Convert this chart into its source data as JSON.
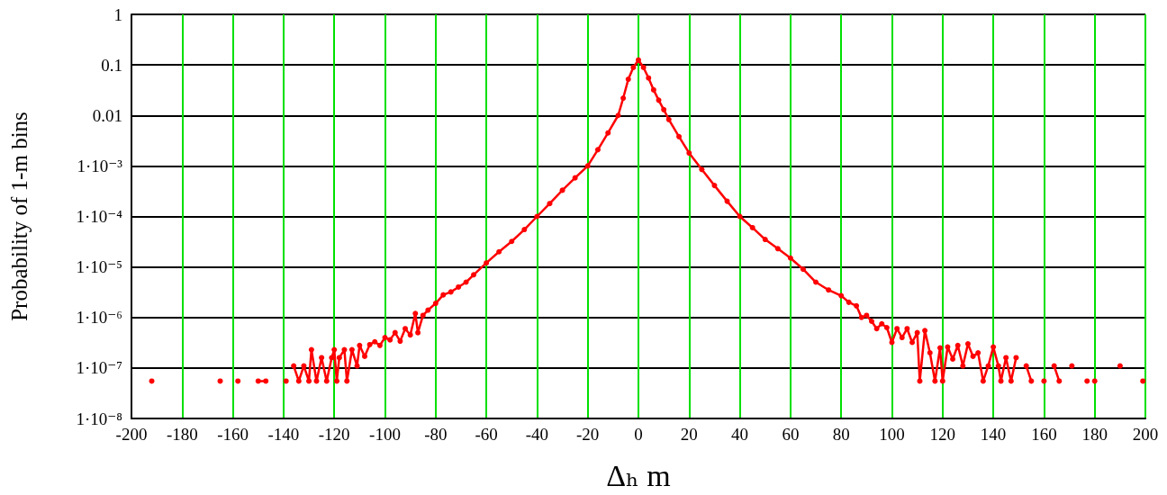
{
  "chart_data": {
    "type": "line",
    "xlabel": "Δₕ m",
    "ylabel": "Probability of 1-m bins",
    "x": [
      -192,
      -188,
      -165,
      -162,
      -158,
      -155,
      -150,
      -147,
      -144,
      -139,
      -137,
      -136,
      -134,
      -132,
      -130,
      -129,
      -127,
      -125,
      -123,
      -121,
      -120,
      -119,
      -118,
      -116,
      -115,
      -113,
      -111,
      -110,
      -108,
      -106,
      -104,
      -102,
      -100,
      -98,
      -96,
      -94,
      -92,
      -90,
      -88,
      -87,
      -85,
      -83,
      -80,
      -77,
      -74,
      -71,
      -68,
      -65,
      -60,
      -55,
      -50,
      -45,
      -40,
      -35,
      -30,
      -25,
      -20,
      -16,
      -12,
      -8,
      -6,
      -4,
      -2,
      0,
      2,
      4,
      6,
      8,
      10,
      12,
      16,
      20,
      25,
      30,
      35,
      40,
      45,
      50,
      55,
      60,
      65,
      70,
      75,
      80,
      83,
      86,
      88,
      90,
      92,
      94,
      96,
      98,
      100,
      102,
      104,
      106,
      108,
      110,
      111,
      113,
      115,
      117,
      119,
      120,
      122,
      124,
      126,
      128,
      130,
      132,
      134,
      136,
      138,
      140,
      142,
      143,
      145,
      147,
      149,
      151,
      153,
      155,
      157,
      160,
      162,
      164,
      166,
      168,
      171,
      173,
      177,
      179,
      180,
      182,
      190,
      192,
      199
    ],
    "series": [
      {
        "color": "#ff0000",
        "values": [
          5.5e-08,
          null,
          5.5e-08,
          null,
          5.5e-08,
          null,
          5.5e-08,
          5.5e-08,
          null,
          5.5e-08,
          null,
          1.1e-07,
          5.5e-08,
          1.1e-07,
          5.5e-08,
          2.3e-07,
          5.5e-08,
          1.6e-07,
          5.5e-08,
          1.6e-07,
          2.3e-07,
          5.5e-08,
          1.6e-07,
          2.3e-07,
          5.5e-08,
          2.3e-07,
          1.1e-07,
          2.8e-07,
          1.7e-07,
          2.9e-07,
          3.3e-07,
          2.8e-07,
          4e-07,
          3.6e-07,
          5e-07,
          3.4e-07,
          6e-07,
          4.5e-07,
          1.2e-06,
          5e-07,
          1.1e-06,
          1.4e-06,
          1.9e-06,
          2.8e-06,
          3.2e-06,
          4e-06,
          5e-06,
          7e-06,
          1.2e-05,
          2e-05,
          3.2e-05,
          5.5e-05,
          0.0001,
          0.00018,
          0.00033,
          0.00058,
          0.001,
          0.0021,
          0.0045,
          0.01,
          0.022,
          0.052,
          0.089,
          0.125,
          0.089,
          0.055,
          0.032,
          0.02,
          0.013,
          0.0083,
          0.0038,
          0.0018,
          0.00085,
          0.00041,
          0.0002,
          0.0001,
          6e-05,
          3.5e-05,
          2.3e-05,
          1.5e-05,
          9e-06,
          5e-06,
          3.5e-06,
          2.7e-06,
          2e-06,
          1.7e-06,
          1e-06,
          1.1e-06,
          8.4e-07,
          6e-07,
          7.5e-07,
          6.3e-07,
          3.2e-07,
          6e-07,
          4e-07,
          6e-07,
          3.2e-07,
          5e-07,
          5.5e-08,
          5.5e-07,
          2e-07,
          5.5e-08,
          2.5e-07,
          5.5e-08,
          2.6e-07,
          1.5e-07,
          2.8e-07,
          1.1e-07,
          3e-07,
          1.7e-07,
          2e-07,
          5.5e-08,
          1.1e-07,
          2.6e-07,
          1.1e-07,
          5.5e-08,
          1.6e-07,
          5.5e-08,
          1.6e-07,
          null,
          1.1e-07,
          5.5e-08,
          null,
          5.5e-08,
          null,
          1.1e-07,
          5.5e-08,
          null,
          1.1e-07,
          null,
          5.5e-08,
          null,
          5.5e-08,
          null,
          1.1e-07,
          null,
          5.5e-08
        ]
      }
    ],
    "xlim": [
      -200,
      200
    ],
    "xticks": [
      -200,
      -180,
      -160,
      -140,
      -120,
      -100,
      -80,
      -60,
      -40,
      -20,
      0,
      20,
      40,
      60,
      80,
      100,
      120,
      140,
      160,
      180,
      200
    ],
    "ylim": [
      1e-08,
      1
    ],
    "log": "y",
    "yticks": [
      1,
      0.1,
      0.01,
      {
        "value": 0.001,
        "label": "1·10⁻³"
      },
      {
        "value": 0.0001,
        "label": "1·10⁻⁴"
      },
      {
        "value": 1e-05,
        "label": "1·10⁻⁵"
      },
      {
        "value": 1e-06,
        "label": "1·10⁻⁶"
      },
      {
        "value": 1e-07,
        "label": "1·10⁻⁷"
      },
      {
        "value": 1e-08,
        "label": "1·10⁻⁸"
      }
    ],
    "grid": true,
    "marker": "circle",
    "line_style": "solid"
  }
}
